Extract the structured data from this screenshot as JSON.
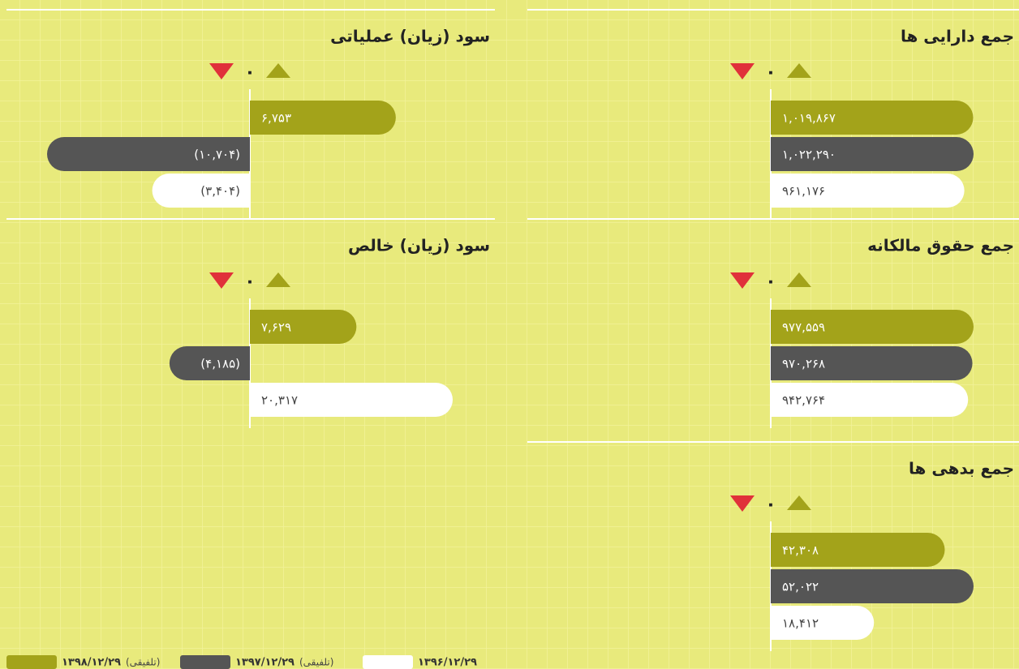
{
  "chart_data": [
    {
      "type": "bar",
      "title": "جمع دارایی ها",
      "values": [
        1019867,
        1022290,
        961176
      ],
      "value_labels": [
        "۱,۰۱۹,۸۶۷",
        "۱,۰۲۲,۲۹۰",
        "۹۶۱,۱۷۶"
      ],
      "xticks": [
        {
          "value": 0,
          "label": "۰"
        }
      ]
    },
    {
      "type": "bar",
      "title": "سود (زیان) عملیاتی",
      "values": [
        6753,
        -10704,
        -3404
      ],
      "value_labels": [
        "۶,۷۵۳",
        "(۱۰,۷۰۴)",
        "(۳,۴۰۴)"
      ],
      "xticks": [
        {
          "value": 0,
          "label": "۰"
        }
      ]
    },
    {
      "type": "bar",
      "title": "جمع حقوق مالکانه",
      "values": [
        977559,
        970268,
        942764
      ],
      "value_labels": [
        "۹۷۷,۵۵۹",
        "۹۷۰,۲۶۸",
        "۹۴۲,۷۶۴"
      ],
      "xticks": [
        {
          "value": 0,
          "label": "۰"
        }
      ]
    },
    {
      "type": "bar",
      "title": "سود (زیان) خالص",
      "values": [
        7629,
        -4185,
        20317
      ],
      "value_labels": [
        "۷,۶۲۹",
        "(۴,۱۸۵)",
        "۲۰,۳۱۷"
      ],
      "xticks": [
        {
          "value": 0,
          "label": "۰"
        }
      ]
    },
    {
      "type": "bar",
      "title": "جمع بدهی ها",
      "values": [
        42308,
        52022,
        18412
      ],
      "value_labels": [
        "۴۲,۳۰۸",
        "۵۲,۰۲۲",
        "۱۸,۴۱۲"
      ],
      "xticks": [
        {
          "value": 0,
          "label": "۰"
        }
      ]
    }
  ],
  "legend": {
    "items": [
      {
        "label": "۱۳۹۸/۱۲/۲۹",
        "note": "(تلفیقی)",
        "color": "#a3a31a"
      },
      {
        "label": "۱۳۹۷/۱۲/۲۹",
        "note": "(تلفیقی)",
        "color": "#555555"
      },
      {
        "label": "۱۳۹۶/۱۲/۲۹",
        "color": "#ffffff"
      }
    ]
  }
}
